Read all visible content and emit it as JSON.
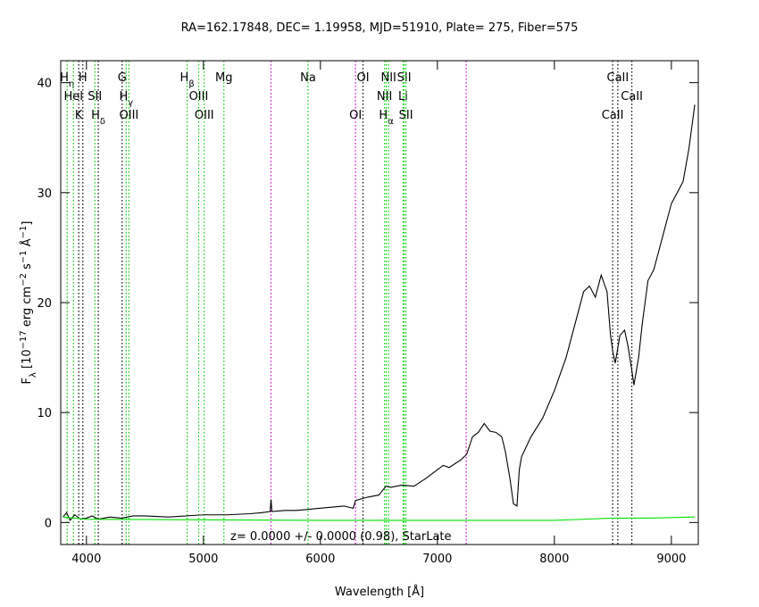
{
  "chart_data": {
    "type": "line",
    "title": "RA=162.17848, DEC= 1.19958, MJD=51910, Plate= 275, Fiber=575",
    "x_label": "Wavelength [Å]",
    "y_label": [
      {
        "text": "F",
        "shift": "base"
      },
      {
        "text": "λ",
        "shift": "sub"
      },
      {
        "text": " [10",
        "shift": "base"
      },
      {
        "text": "−17",
        "shift": "sup"
      },
      {
        "text": " erg cm",
        "shift": "base"
      },
      {
        "text": "−2",
        "shift": "sup"
      },
      {
        "text": " s",
        "shift": "base"
      },
      {
        "text": "−1",
        "shift": "sup"
      },
      {
        "text": " Å",
        "shift": "base"
      },
      {
        "text": "−1",
        "shift": "sup"
      },
      {
        "text": "]",
        "shift": "base"
      }
    ],
    "annotation": "z= 0.0000 +/- 0.0000 (0.98), StarLate",
    "xlim": [
      3780,
      9230
    ],
    "ylim": [
      -2,
      42
    ],
    "xticks": [
      4000,
      5000,
      6000,
      7000,
      8000,
      9000
    ],
    "yticks": [
      0,
      10,
      20,
      30,
      40
    ],
    "series": [
      {
        "color": "#000000",
        "x": [
          3800,
          3830,
          3860,
          3900,
          3950,
          4000,
          4050,
          4100,
          4200,
          4300,
          4400,
          4500,
          4700,
          5000,
          5200,
          5400,
          5500,
          5570,
          5578,
          5585,
          5700,
          5800,
          6000,
          6200,
          6280,
          6300,
          6400,
          6500,
          6560,
          6600,
          6700,
          6800,
          6900,
          7000,
          7050,
          7100,
          7200,
          7250,
          7300,
          7350,
          7400,
          7450,
          7500,
          7550,
          7580,
          7620,
          7650,
          7680,
          7700,
          7720,
          7800,
          7900,
          8000,
          8100,
          8150,
          8200,
          8250,
          8300,
          8350,
          8400,
          8450,
          8480,
          8500,
          8520,
          8560,
          8600,
          8630,
          8660,
          8680,
          8720,
          8750,
          8800,
          8850,
          8900,
          8950,
          9000,
          9050,
          9100,
          9150,
          9200
        ],
        "values": [
          0.5,
          0.9,
          0.2,
          0.7,
          0.3,
          0.4,
          0.6,
          0.3,
          0.5,
          0.4,
          0.6,
          0.6,
          0.5,
          0.7,
          0.7,
          0.8,
          0.9,
          1.0,
          2.1,
          1.0,
          1.1,
          1.1,
          1.3,
          1.5,
          1.3,
          2.0,
          2.3,
          2.5,
          3.3,
          3.2,
          3.4,
          3.3,
          4.0,
          4.8,
          5.2,
          5.0,
          5.7,
          6.2,
          7.8,
          8.2,
          9.0,
          8.3,
          8.2,
          7.8,
          6.5,
          4.0,
          1.7,
          1.5,
          4.8,
          6.0,
          7.8,
          9.5,
          12,
          15,
          17,
          19,
          21,
          21.5,
          20.5,
          22.5,
          21,
          17,
          15.5,
          14.5,
          17,
          17.5,
          16,
          14,
          12.5,
          15,
          18,
          22,
          23,
          25,
          27,
          29,
          30,
          31,
          34,
          38
        ]
      },
      {
        "color": "#00e000",
        "x": [
          3800,
          4000,
          5000,
          6000,
          7000,
          8000,
          8500,
          8800,
          9200
        ],
        "values": [
          0.5,
          0.3,
          0.25,
          0.2,
          0.2,
          0.2,
          0.4,
          0.4,
          0.5
        ]
      }
    ],
    "lines": [
      {
        "wavelength": 3835,
        "color": "#00d000",
        "row": 0,
        "label": "H",
        "sub": "η"
      },
      {
        "wavelength": 3889,
        "color": "#00d000",
        "row": 1,
        "label": "HeI"
      },
      {
        "wavelength": 3934,
        "color": "#000000",
        "row": 2,
        "label": "K"
      },
      {
        "wavelength": 3969,
        "color": "#000000",
        "row": 0,
        "label": "H"
      },
      {
        "wavelength": 4072,
        "color": "#00d000",
        "row": 1,
        "label": "SII"
      },
      {
        "wavelength": 4101,
        "color": "#000000",
        "row": 2,
        "label": "H",
        "sub": "δ"
      },
      {
        "wavelength": 4305,
        "color": "#000000",
        "row": 0,
        "label": "G"
      },
      {
        "wavelength": 4340,
        "color": "#00d000",
        "row": 1,
        "label": "H",
        "sub": "γ"
      },
      {
        "wavelength": 4363,
        "color": "#00d000",
        "row": 2,
        "label": "OIII"
      },
      {
        "wavelength": 4861,
        "color": "#00d000",
        "row": 0,
        "label": "H",
        "sub": "β"
      },
      {
        "wavelength": 4959,
        "color": "#00d000",
        "row": 1,
        "label": "OIII"
      },
      {
        "wavelength": 5007,
        "color": "#00d000",
        "row": 2,
        "label": "OIII"
      },
      {
        "wavelength": 5175,
        "color": "#00d000",
        "row": 0,
        "label": "Mg"
      },
      {
        "wavelength": 5577,
        "color": "#d000d0"
      },
      {
        "wavelength": 5894,
        "color": "#00d000",
        "row": 0,
        "label": "Na"
      },
      {
        "wavelength": 6300,
        "color": "#d000d0",
        "row": 2,
        "label": "OI"
      },
      {
        "wavelength": 6364,
        "color": "#000000",
        "row": 0,
        "label": "OI"
      },
      {
        "wavelength": 6548,
        "color": "#00d000",
        "row": 1,
        "label": "NII"
      },
      {
        "wavelength": 6563,
        "color": "#00d000",
        "row": 2,
        "label": "H",
        "sub": "α"
      },
      {
        "wavelength": 6583,
        "color": "#00d000",
        "row": 0,
        "label": "NII"
      },
      {
        "wavelength": 6707,
        "color": "#00d000",
        "row": 1,
        "label": "Li"
      },
      {
        "wavelength": 6716,
        "color": "#00d000",
        "row": 0,
        "label": "SII"
      },
      {
        "wavelength": 6731,
        "color": "#00d000",
        "row": 2,
        "label": "SII"
      },
      {
        "wavelength": 7246,
        "color": "#d000d0"
      },
      {
        "wavelength": 8498,
        "color": "#000000",
        "row": 2,
        "label": "CaII"
      },
      {
        "wavelength": 8542,
        "color": "#000000",
        "row": 0,
        "label": "CaII"
      },
      {
        "wavelength": 8662,
        "color": "#000000",
        "row": 1,
        "label": "CaII"
      }
    ]
  }
}
